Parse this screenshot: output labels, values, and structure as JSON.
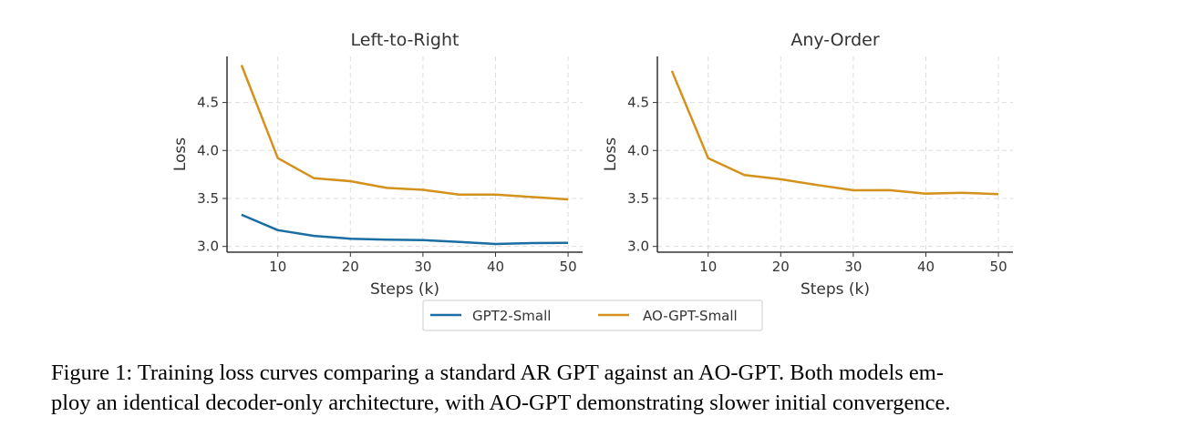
{
  "chart_data": [
    {
      "type": "line",
      "title": "Left-to-Right",
      "xlabel": "Steps (k)",
      "ylabel": "Loss",
      "x": [
        5,
        10,
        15,
        20,
        25,
        30,
        35,
        40,
        45,
        50
      ],
      "xticks": [
        10,
        20,
        30,
        40,
        50
      ],
      "yticks": [
        3.0,
        3.5,
        4.0,
        4.5
      ],
      "xlim": [
        3,
        52
      ],
      "ylim": [
        2.94,
        4.98
      ],
      "grid": true,
      "series": [
        {
          "name": "GPT2-Small",
          "color": "#1a6ea3",
          "values": [
            3.33,
            3.17,
            3.11,
            3.08,
            3.07,
            3.065,
            3.047,
            3.025,
            3.035,
            3.037
          ]
        },
        {
          "name": "AO-GPT-Small",
          "color": "#d4921d",
          "values": [
            4.89,
            3.92,
            3.71,
            3.68,
            3.61,
            3.59,
            3.54,
            3.54,
            3.515,
            3.49
          ]
        }
      ]
    },
    {
      "type": "line",
      "title": "Any-Order",
      "xlabel": "Steps (k)",
      "ylabel": "Loss",
      "x": [
        5,
        10,
        15,
        20,
        25,
        30,
        35,
        40,
        45,
        50
      ],
      "xticks": [
        10,
        20,
        30,
        40,
        50
      ],
      "yticks": [
        3.0,
        3.5,
        4.0,
        4.5
      ],
      "xlim": [
        3,
        52
      ],
      "ylim": [
        2.94,
        4.98
      ],
      "grid": true,
      "series": [
        {
          "name": "AO-GPT-Small",
          "color": "#d4921d",
          "values": [
            4.83,
            3.92,
            3.745,
            3.7,
            3.64,
            3.585,
            3.586,
            3.55,
            3.56,
            3.545
          ]
        }
      ]
    }
  ],
  "legend": {
    "items": [
      {
        "label": "GPT2-Small",
        "color": "#1a6ea3"
      },
      {
        "label": "AO-GPT-Small",
        "color": "#d4921d"
      }
    ]
  },
  "caption": {
    "line1": "Figure 1: Training loss curves comparing a standard AR GPT against an AO-GPT. Both models em-",
    "line2": "ploy an identical decoder-only architecture, with AO-GPT demonstrating slower initial convergence."
  }
}
